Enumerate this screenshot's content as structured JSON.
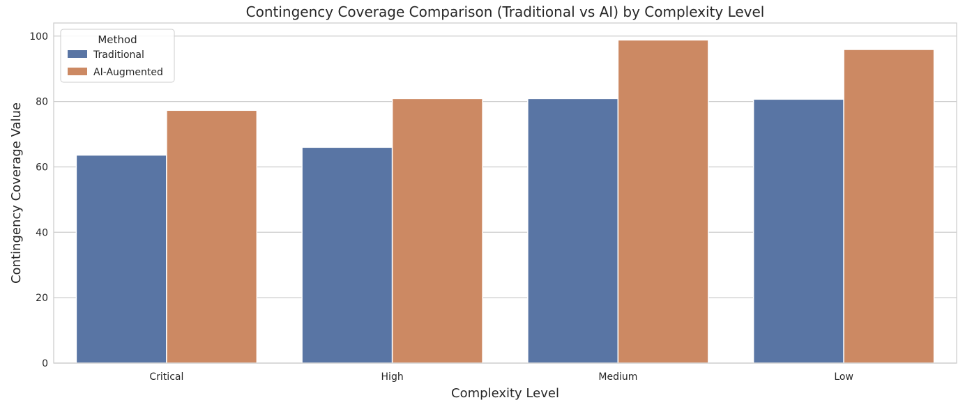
{
  "chart_data": {
    "type": "bar",
    "title": "Contingency Coverage Comparison (Traditional vs AI) by Complexity Level",
    "xlabel": "Complexity Level",
    "ylabel": "Contingency Coverage Value",
    "categories": [
      "Critical",
      "High",
      "Medium",
      "Low"
    ],
    "series": [
      {
        "name": "Traditional",
        "values": [
          63.6,
          66.0,
          80.9,
          80.7
        ],
        "color": "#5975a4"
      },
      {
        "name": "AI-Augmented",
        "values": [
          77.3,
          80.9,
          98.8,
          95.9
        ],
        "color": "#cc8963"
      }
    ],
    "ylim": [
      0,
      104
    ],
    "yticks": [
      0,
      20,
      40,
      60,
      80,
      100
    ],
    "grid": "horizontal",
    "legend": {
      "title": "Method",
      "placement": "top-left"
    }
  }
}
